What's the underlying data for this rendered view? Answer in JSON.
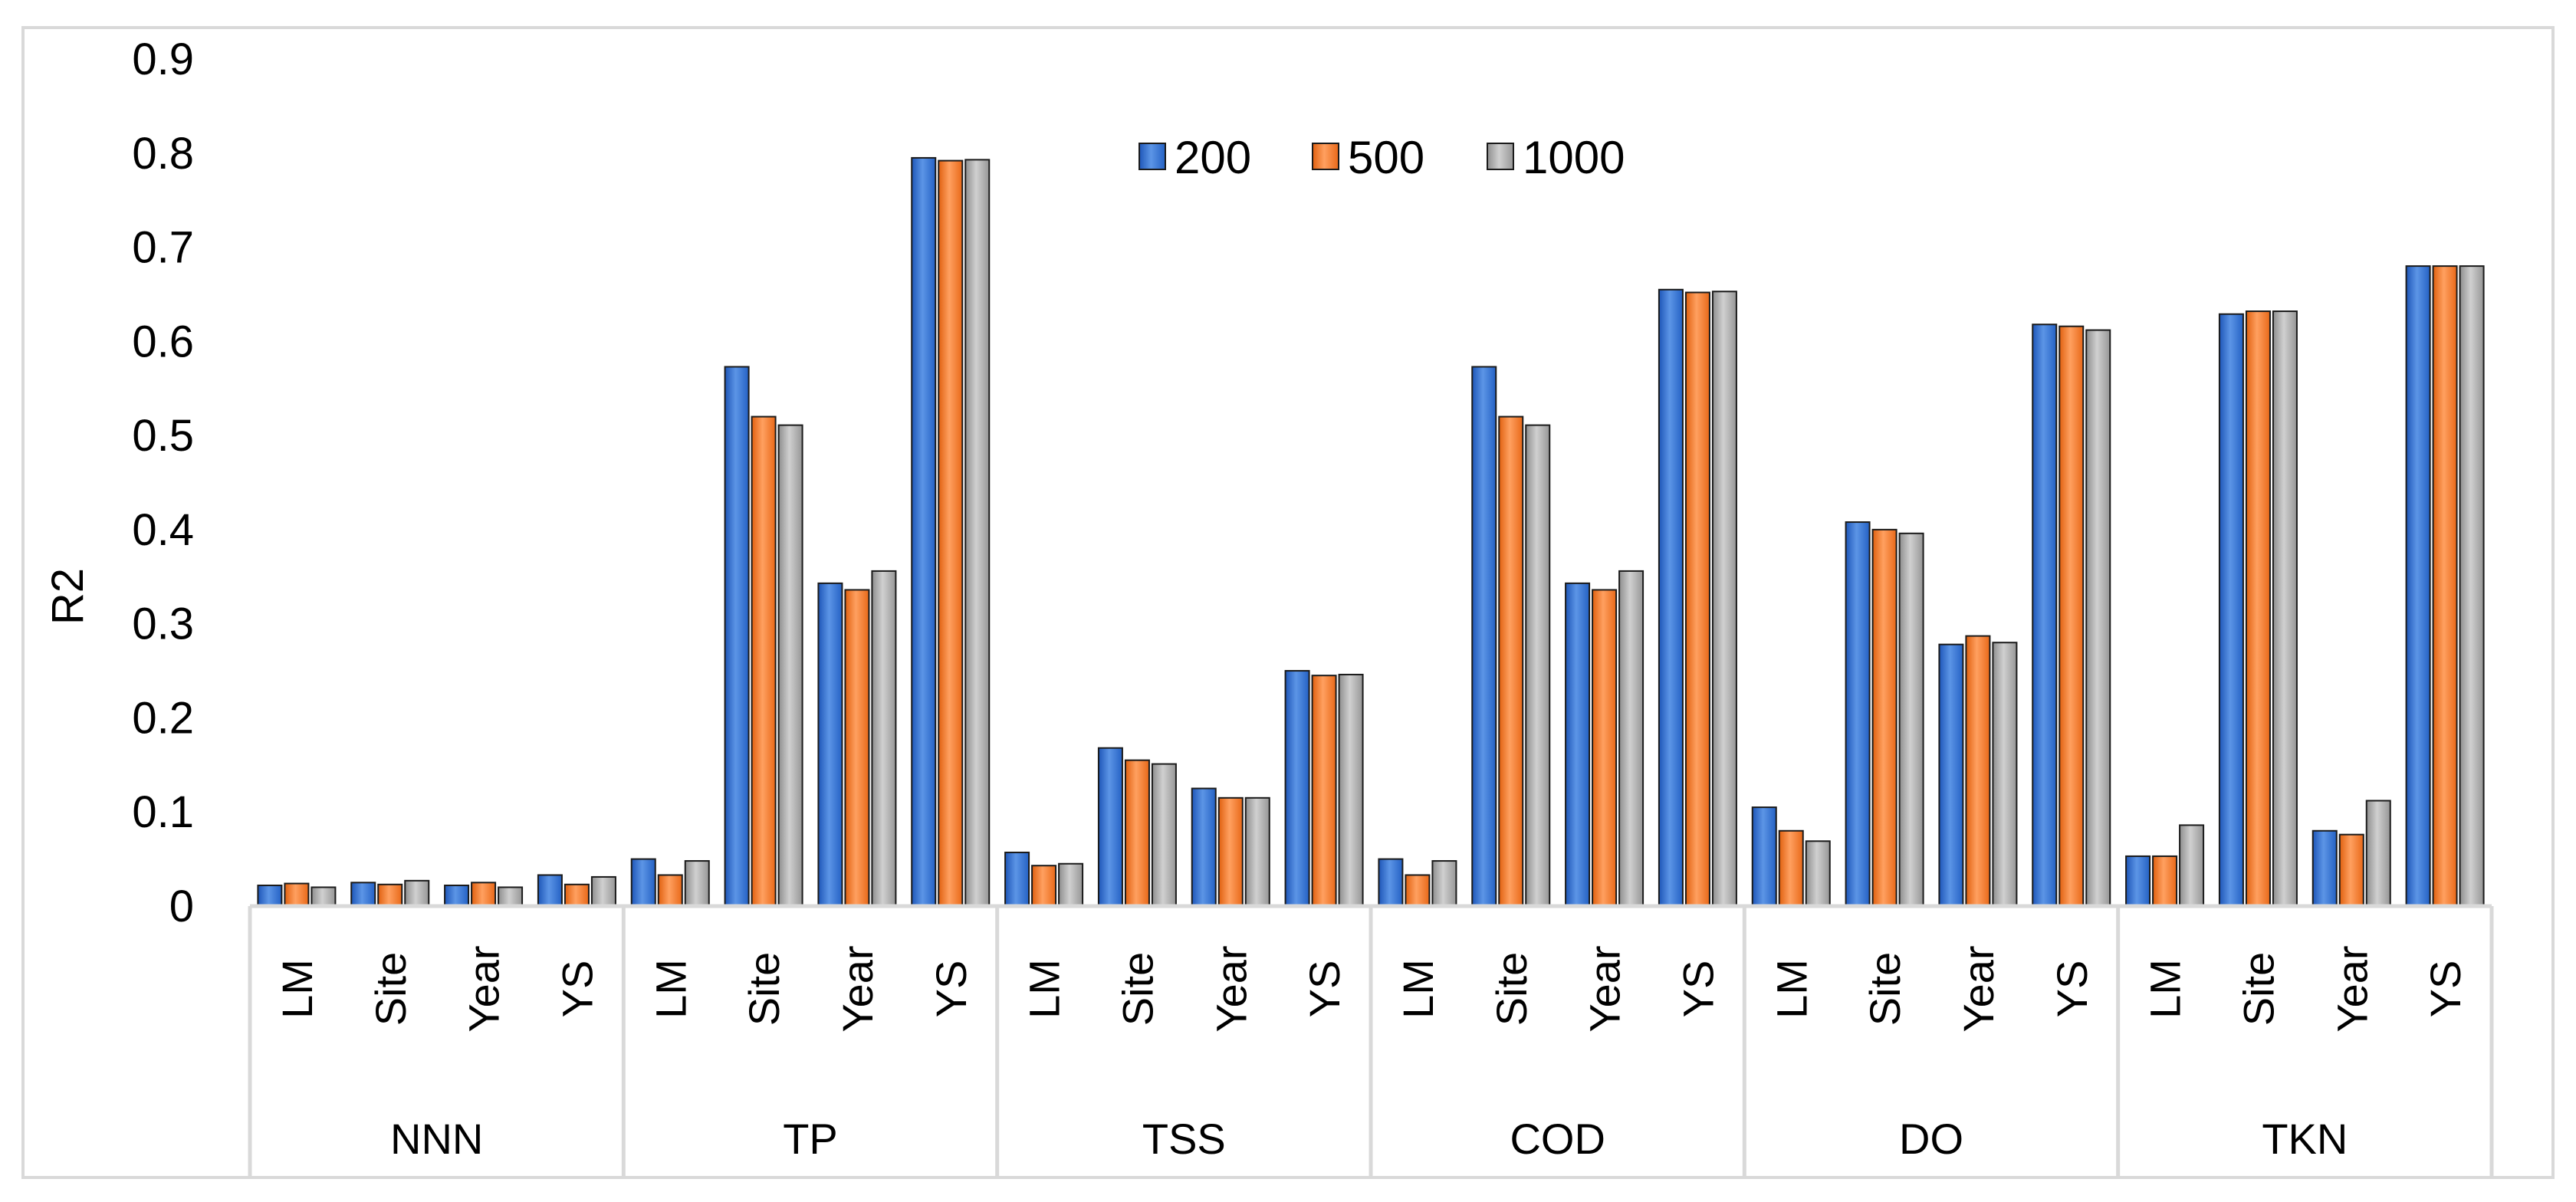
{
  "chart_data": {
    "type": "bar",
    "title": "",
    "xlabel": "",
    "ylabel": "R2",
    "ylim": [
      0,
      0.9
    ],
    "yticks": [
      "0",
      "0.1",
      "0.2",
      "0.3",
      "0.4",
      "0.5",
      "0.6",
      "0.7",
      "0.8",
      "0.9"
    ],
    "grid": false,
    "legend_position": "top-center",
    "groups": [
      {
        "label": "NNN",
        "categories": [
          "LM",
          "Site",
          "Year",
          "YS"
        ]
      },
      {
        "label": "TP",
        "categories": [
          "LM",
          "Site",
          "Year",
          "YS"
        ]
      },
      {
        "label": "TSS",
        "categories": [
          "LM",
          "Site",
          "Year",
          "YS"
        ]
      },
      {
        "label": "COD",
        "categories": [
          "LM",
          "Site",
          "Year",
          "YS"
        ]
      },
      {
        "label": "DO",
        "categories": [
          "LM",
          "Site",
          "Year",
          "YS"
        ]
      },
      {
        "label": "TKN",
        "categories": [
          "LM",
          "Site",
          "Year",
          "YS"
        ]
      }
    ],
    "series": [
      {
        "name": "200",
        "color": "#2E6FD0",
        "values": [
          0.022,
          0.025,
          0.022,
          0.033,
          0.05,
          0.573,
          0.343,
          0.795,
          0.057,
          0.168,
          0.125,
          0.25,
          0.05,
          0.573,
          0.343,
          0.655,
          0.105,
          0.408,
          0.278,
          0.618,
          0.053,
          0.629,
          0.08,
          0.68
        ]
      },
      {
        "name": "500",
        "color": "#F5782A",
        "values": [
          0.024,
          0.023,
          0.025,
          0.023,
          0.033,
          0.52,
          0.336,
          0.792,
          0.043,
          0.155,
          0.115,
          0.245,
          0.033,
          0.52,
          0.336,
          0.652,
          0.08,
          0.4,
          0.287,
          0.616,
          0.053,
          0.632,
          0.076,
          0.68
        ]
      },
      {
        "name": "1000",
        "color": "#A8A8A8",
        "values": [
          0.02,
          0.027,
          0.02,
          0.031,
          0.048,
          0.511,
          0.356,
          0.793,
          0.045,
          0.151,
          0.115,
          0.246,
          0.048,
          0.511,
          0.356,
          0.653,
          0.069,
          0.396,
          0.28,
          0.612,
          0.086,
          0.632,
          0.112,
          0.68
        ]
      }
    ]
  }
}
